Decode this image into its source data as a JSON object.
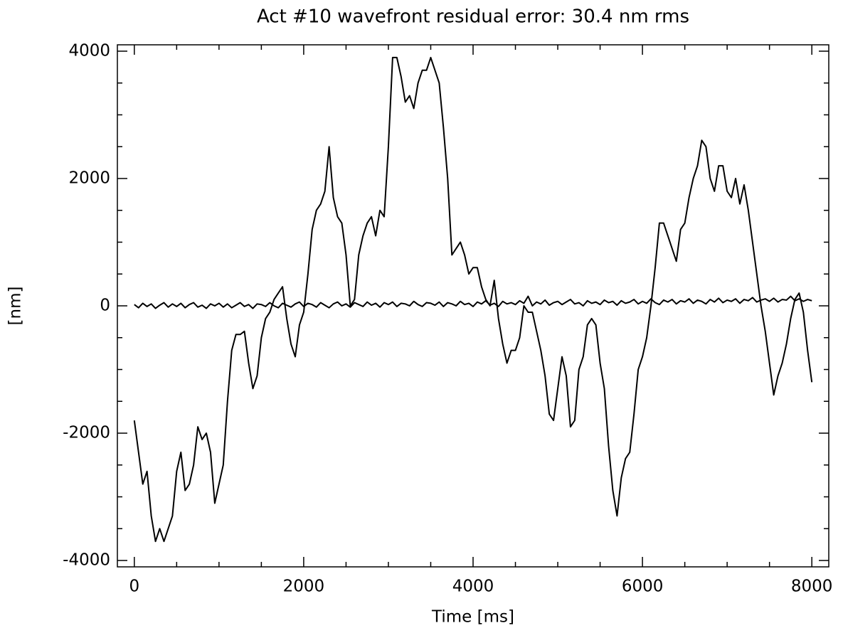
{
  "chart_data": {
    "type": "line",
    "title": "Act #10 wavefront residual error: 30.4 nm rms",
    "xlabel": "Time [ms]",
    "ylabel": "[nm]",
    "x": [
      0,
      50,
      100,
      150,
      200,
      250,
      300,
      350,
      400,
      450,
      500,
      550,
      600,
      650,
      700,
      750,
      800,
      850,
      900,
      950,
      1000,
      1050,
      1100,
      1150,
      1200,
      1250,
      1300,
      1350,
      1400,
      1450,
      1500,
      1550,
      1600,
      1650,
      1700,
      1750,
      1800,
      1850,
      1900,
      1950,
      2000,
      2050,
      2100,
      2150,
      2200,
      2250,
      2300,
      2350,
      2400,
      2450,
      2500,
      2550,
      2600,
      2650,
      2700,
      2750,
      2800,
      2850,
      2900,
      2950,
      3000,
      3050,
      3100,
      3150,
      3200,
      3250,
      3300,
      3350,
      3400,
      3450,
      3500,
      3550,
      3600,
      3650,
      3700,
      3750,
      3800,
      3850,
      3900,
      3950,
      4000,
      4050,
      4100,
      4150,
      4200,
      4250,
      4300,
      4350,
      4400,
      4450,
      4500,
      4550,
      4600,
      4650,
      4700,
      4750,
      4800,
      4850,
      4900,
      4950,
      5000,
      5050,
      5100,
      5150,
      5200,
      5250,
      5300,
      5350,
      5400,
      5450,
      5500,
      5550,
      5600,
      5650,
      5700,
      5750,
      5800,
      5850,
      5900,
      5950,
      6000,
      6050,
      6100,
      6150,
      6200,
      6250,
      6300,
      6350,
      6400,
      6450,
      6500,
      6550,
      6600,
      6650,
      6700,
      6750,
      6800,
      6850,
      6900,
      6950,
      7000,
      7050,
      7100,
      7150,
      7200,
      7250,
      7300,
      7350,
      7400,
      7450,
      7500,
      7550,
      7600,
      7650,
      7700,
      7750,
      7800,
      7850,
      7900,
      7950,
      8000
    ],
    "series": [
      {
        "color": "#000000",
        "values": [
          -1800,
          -2300,
          -2800,
          -2600,
          -3300,
          -3700,
          -3500,
          -3700,
          -3500,
          -3300,
          -2600,
          -2300,
          -2900,
          -2800,
          -2500,
          -1900,
          -2100,
          -2000,
          -2300,
          -3100,
          -2800,
          -2500,
          -1500,
          -700,
          -450,
          -450,
          -400,
          -900,
          -1300,
          -1100,
          -500,
          -200,
          -100,
          100,
          200,
          300,
          -200,
          -600,
          -800,
          -300,
          -100,
          500,
          1200,
          1500,
          1600,
          1800,
          2500,
          1700,
          1400,
          1300,
          800,
          0,
          100,
          800,
          1100,
          1300,
          1400,
          1100,
          1500,
          1400,
          2500,
          3900,
          3900,
          3600,
          3200,
          3300,
          3100,
          3500,
          3700,
          3700,
          3900,
          3700,
          3500,
          2800,
          2000,
          800,
          900,
          1000,
          800,
          500,
          600,
          600,
          300,
          100,
          0,
          400,
          -200,
          -600,
          -900,
          -700,
          -700,
          -500,
          0,
          -100,
          -100,
          -400,
          -700,
          -1100,
          -1700,
          -1800,
          -1300,
          -800,
          -1100,
          -1900,
          -1800,
          -1000,
          -800,
          -300,
          -200,
          -300,
          -900,
          -1300,
          -2200,
          -2900,
          -3300,
          -2700,
          -2400,
          -2300,
          -1700,
          -1000,
          -800,
          -500,
          0,
          600,
          1300,
          1300,
          1100,
          900,
          700,
          1200,
          1300,
          1700,
          2000,
          2200,
          2600,
          2500,
          2000,
          1800,
          2200,
          2200,
          1800,
          1700,
          2000,
          1600,
          1900,
          1500,
          1000,
          500,
          0,
          -400,
          -900,
          -1400,
          -1100,
          -900,
          -600,
          -200,
          100,
          200,
          -100,
          -700,
          -1200
        ]
      },
      {
        "color": "#000000",
        "values": [
          20,
          -30,
          40,
          -10,
          30,
          -40,
          10,
          50,
          -20,
          30,
          -10,
          40,
          -30,
          20,
          50,
          -20,
          10,
          -40,
          30,
          0,
          40,
          -20,
          30,
          -30,
          10,
          50,
          -10,
          20,
          -40,
          30,
          20,
          -10,
          50,
          0,
          -30,
          40,
          10,
          -20,
          30,
          60,
          -10,
          40,
          20,
          -20,
          50,
          10,
          -30,
          30,
          60,
          0,
          30,
          -20,
          50,
          20,
          -10,
          60,
          10,
          40,
          -20,
          50,
          20,
          60,
          -10,
          40,
          30,
          0,
          70,
          20,
          -10,
          50,
          40,
          10,
          60,
          -10,
          50,
          30,
          0,
          70,
          20,
          40,
          -10,
          60,
          30,
          80,
          10,
          40,
          -10,
          70,
          30,
          50,
          20,
          80,
          40,
          150,
          0,
          60,
          30,
          90,
          10,
          50,
          70,
          20,
          60,
          100,
          30,
          50,
          0,
          80,
          40,
          60,
          20,
          90,
          50,
          70,
          10,
          80,
          40,
          60,
          100,
          30,
          70,
          40,
          110,
          50,
          20,
          90,
          60,
          100,
          30,
          80,
          60,
          110,
          40,
          90,
          70,
          30,
          100,
          60,
          120,
          50,
          90,
          70,
          110,
          40,
          100,
          80,
          130,
          60,
          90,
          110,
          70,
          120,
          60,
          100,
          90,
          150,
          80,
          110,
          70,
          100,
          80
        ]
      }
    ],
    "xlim": [
      -200,
      8200
    ],
    "xticks": [
      0,
      2000,
      4000,
      6000,
      8000
    ],
    "ylim": [
      -4100,
      4100
    ],
    "yticks": [
      -4000,
      -2000,
      0,
      2000,
      4000
    ],
    "minor_divisions": 4,
    "grid": false
  }
}
